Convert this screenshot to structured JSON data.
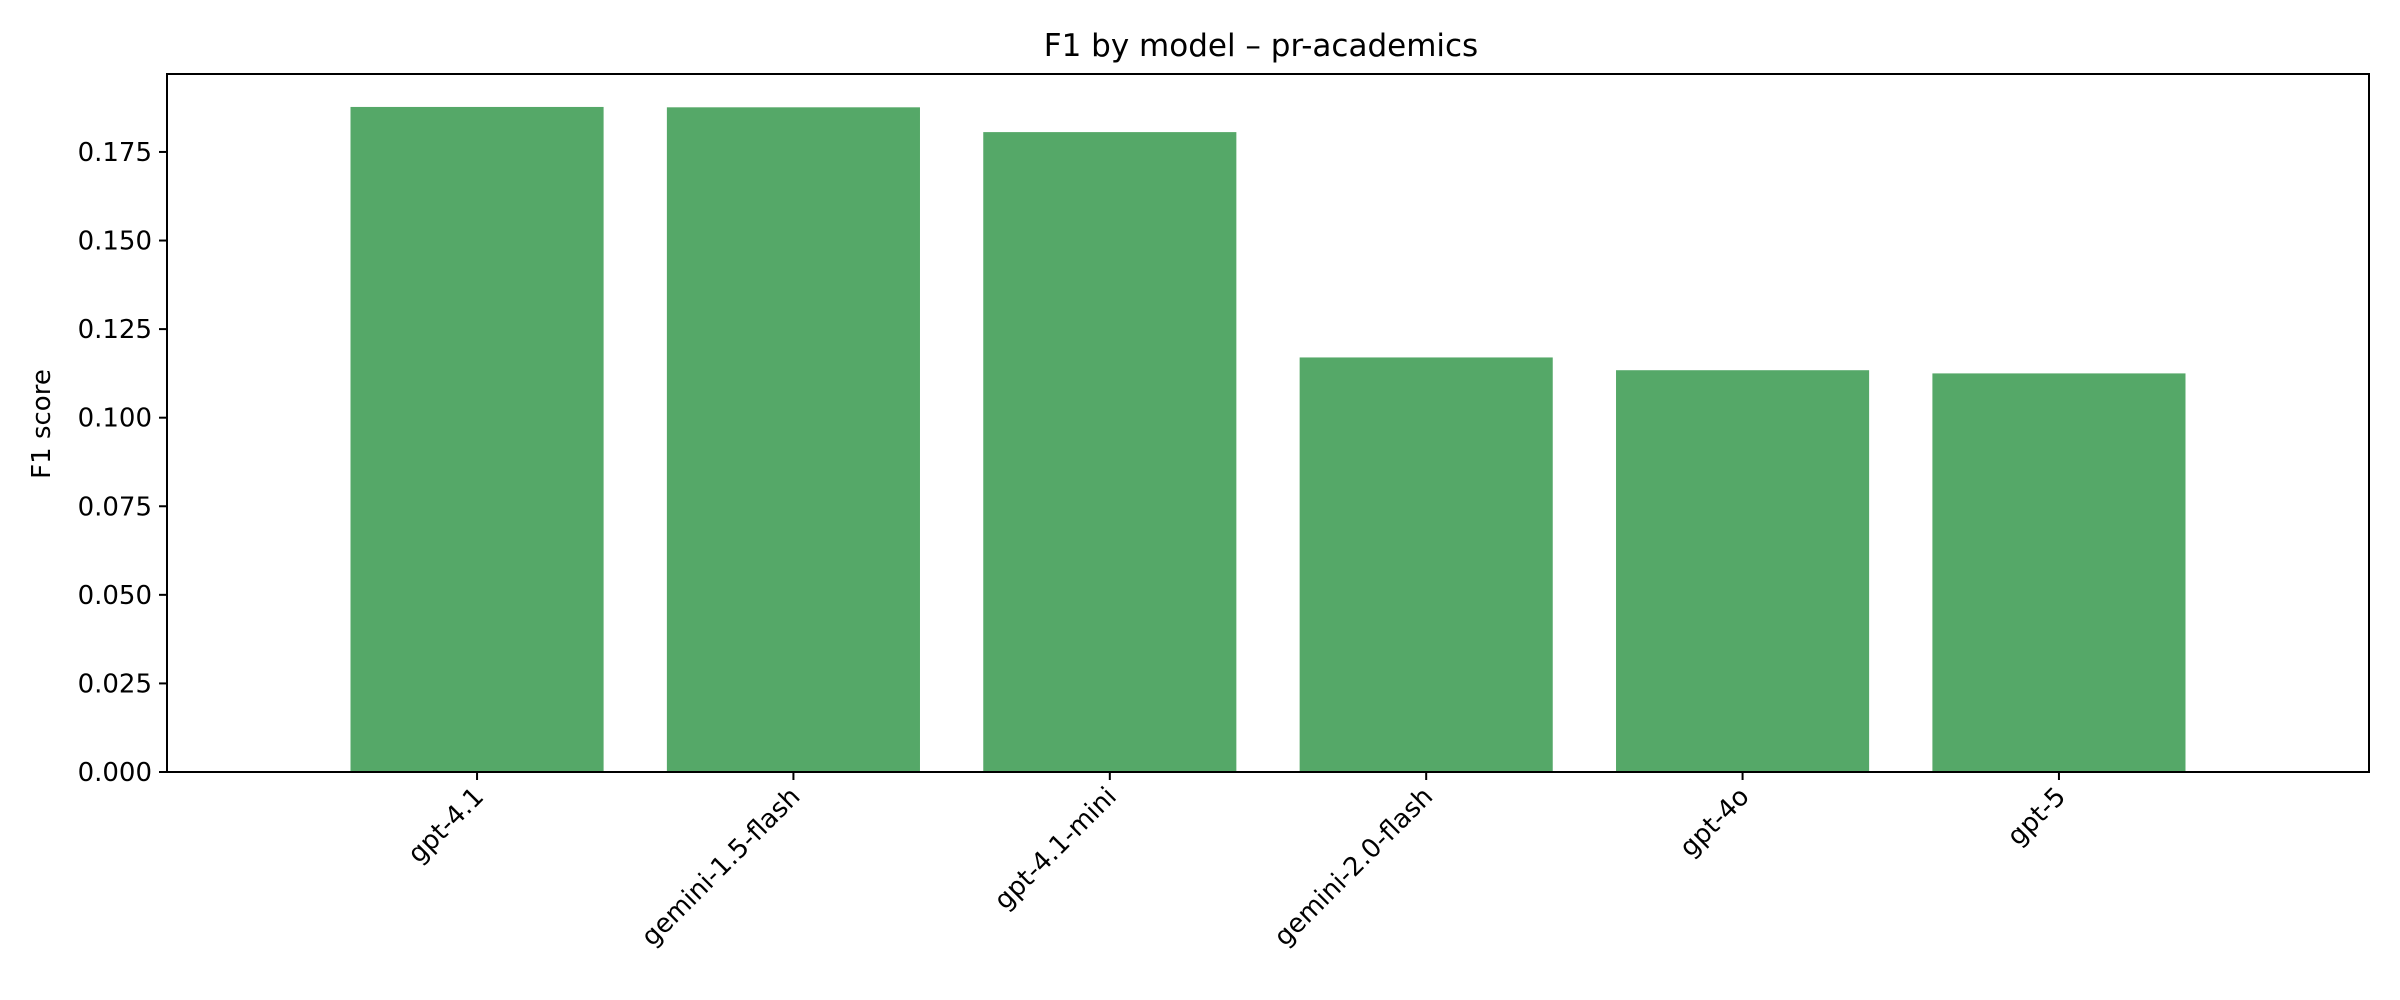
{
  "chart_data": {
    "type": "bar",
    "title": "F1 by model – pr-academics",
    "xlabel": "",
    "ylabel": "F1 score",
    "categories": [
      "gpt-4.1",
      "gemini-1.5-flash",
      "gpt-4.1-mini",
      "gemini-2.0-flash",
      "gpt-4o",
      "gpt-5"
    ],
    "values": [
      0.1877,
      0.1876,
      0.1806,
      0.117,
      0.1134,
      0.1125
    ],
    "ylim": [
      0,
      0.197
    ],
    "yticks": [
      "0.000",
      "0.025",
      "0.050",
      "0.075",
      "0.100",
      "0.125",
      "0.150",
      "0.175"
    ],
    "ytick_values": [
      0,
      0.025,
      0.05,
      0.075,
      0.1,
      0.125,
      0.15,
      0.175
    ],
    "bar_color": "#55a868",
    "grid": false,
    "legend": "none"
  }
}
